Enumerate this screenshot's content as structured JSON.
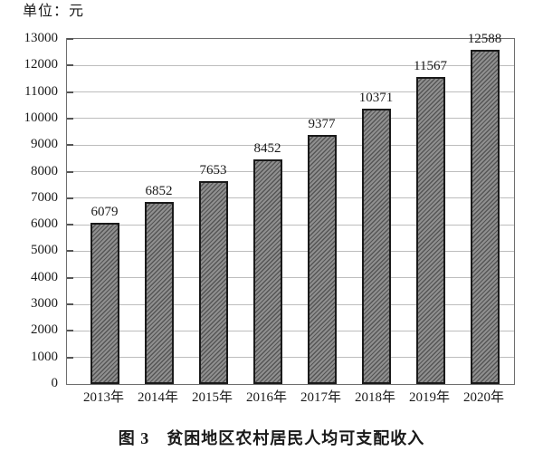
{
  "figure": {
    "unit_label": "单位：元",
    "caption": "图 3　贫困地区农村居民人均可支配收入"
  },
  "chart_data": {
    "type": "bar",
    "title": "图3 贫困地区农村居民人均可支配收入",
    "unit": "元",
    "categories": [
      "2013年",
      "2014年",
      "2015年",
      "2016年",
      "2017年",
      "2018年",
      "2019年",
      "2020年"
    ],
    "values": [
      6079,
      6852,
      7653,
      8452,
      9377,
      10371,
      11567,
      12588
    ],
    "xlabel": "",
    "ylabel": "单位：元",
    "ylim": [
      0,
      13000
    ],
    "ytick_step": 1000,
    "grid": true,
    "legend": "none",
    "bar_labels_shown": true,
    "bar_style": "diagonal-hatch",
    "colors": {
      "bar_fill_base": "#8f8f8f",
      "bar_hatch": "#555555",
      "bar_border": "#1a1a1a",
      "gridline": "#bdbdbd",
      "axis_box": "#6e6e6e",
      "tick": "#555555",
      "text": "#1a1a1a",
      "background": "#ffffff"
    }
  }
}
